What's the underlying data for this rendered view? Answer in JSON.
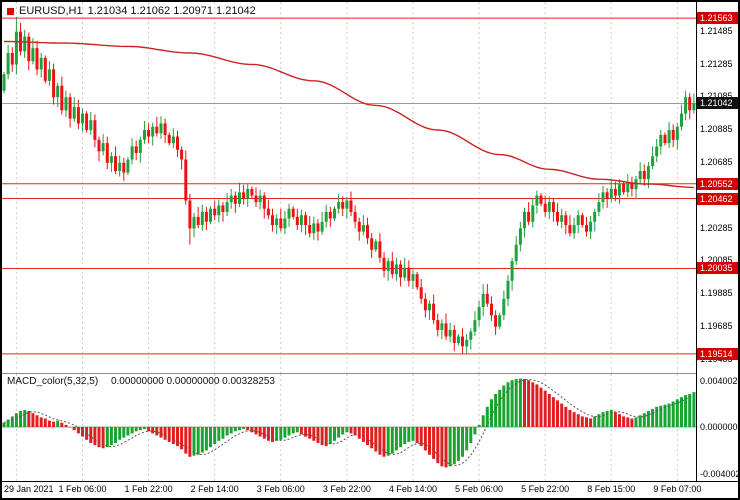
{
  "window": {
    "title_symbol": "EURUSD,H1",
    "title_ohlc": "1.21034 1.21062 1.20971 1.21042"
  },
  "colors": {
    "candle_up": "#1fa13d",
    "candle_down": "#ee1111",
    "ma_line": "#cc2222",
    "level_line": "#ee2222",
    "badge_bg": "#d40000",
    "current_badge_bg": "#111111",
    "bid_line": "#9a9a9a",
    "grid": "#cdcdcd",
    "macd_up": "#18a52f",
    "macd_down": "#e02020",
    "macd_signal": "#555555"
  },
  "chart_data": {
    "type": "candlestick",
    "symbol": "EURUSD",
    "timeframe": "H1",
    "price_range": {
      "min": 1.1944,
      "max": 1.216
    },
    "current_price": 1.21042,
    "current_label": "1.21042",
    "levels": [
      1.21563,
      1.20552,
      1.20462,
      1.20035,
      1.19514
    ],
    "level_labels": [
      "1.21563",
      "1.20552",
      "1.20462",
      "1.20035",
      "1.19514"
    ],
    "price_ticks": [
      {
        "label": "1.21485",
        "price": 1.21485
      },
      {
        "label": "1.21285",
        "price": 1.21285
      },
      {
        "label": "1.21085",
        "price": 1.21085
      },
      {
        "label": "1.20885",
        "price": 1.20885
      },
      {
        "label": "1.20685",
        "price": 1.20685
      },
      {
        "label": "1.20285",
        "price": 1.20285
      },
      {
        "label": "1.20085",
        "price": 1.20085
      },
      {
        "label": "1.19885",
        "price": 1.19885
      },
      {
        "label": "1.19685",
        "price": 1.19685
      },
      {
        "label": "1.19485",
        "price": 1.19485
      }
    ],
    "time_labels": [
      "29 Jan 2021",
      "1 Feb 06:00",
      "1 Feb 22:00",
      "2 Feb 14:00",
      "3 Feb 06:00",
      "3 Feb 22:00",
      "4 Feb 14:00",
      "5 Feb 06:00",
      "5 Feb 22:00",
      "8 Feb 15:00",
      "9 Feb 07:00"
    ],
    "time_label_indices": [
      3,
      19,
      35,
      51,
      67,
      83,
      99,
      115,
      131,
      147,
      163
    ],
    "first_open": 1.2112,
    "closes": [
      1.2122,
      1.2135,
      1.2128,
      1.2148,
      1.2136,
      1.2145,
      1.213,
      1.2138,
      1.2125,
      1.2132,
      1.2118,
      1.2125,
      1.2108,
      1.2115,
      1.21,
      1.2108,
      1.2095,
      1.2102,
      1.2092,
      1.2098,
      1.2088,
      1.2094,
      1.2082,
      1.2075,
      1.208,
      1.2068,
      1.2072,
      1.2063,
      1.2068,
      1.2062,
      1.207,
      1.2078,
      1.2074,
      1.2082,
      1.2088,
      1.2084,
      1.209,
      1.2086,
      1.2092,
      1.2085,
      1.208,
      1.2084,
      1.2076,
      1.207,
      1.2045,
      1.2028,
      1.2035,
      1.203,
      1.2038,
      1.2032,
      1.204,
      1.2036,
      1.2042,
      1.2038,
      1.2044,
      1.2048,
      1.2043,
      1.205,
      1.2046,
      1.2052,
      1.2048,
      1.2044,
      1.2048,
      1.204,
      1.2036,
      1.203,
      1.2034,
      1.2028,
      1.2034,
      1.204,
      1.2035,
      1.203,
      1.2036,
      1.203,
      1.2025,
      1.2031,
      1.2026,
      1.2032,
      1.2038,
      1.2034,
      1.204,
      1.2044,
      1.204,
      1.2045,
      1.2038,
      1.2032,
      1.2026,
      1.203,
      1.2022,
      1.2015,
      1.202,
      1.201,
      1.2002,
      1.2008,
      1.2,
      1.2006,
      1.1998,
      1.2004,
      1.1996,
      1.2,
      1.1992,
      1.1985,
      1.1978,
      1.1982,
      1.1972,
      1.1966,
      1.197,
      1.1962,
      1.1966,
      1.1958,
      1.1962,
      1.1956,
      1.196,
      1.1965,
      1.1972,
      1.198,
      1.1988,
      1.1982,
      1.1975,
      1.1968,
      1.1975,
      1.1985,
      1.1996,
      1.2008,
      1.2018,
      1.2028,
      1.2038,
      1.2032,
      1.2042,
      1.2048,
      1.2043,
      1.2038,
      1.2044,
      1.2038,
      1.2032,
      1.2036,
      1.203,
      1.2025,
      1.203,
      1.2036,
      1.203,
      1.2026,
      1.2032,
      1.2038,
      1.2044,
      1.205,
      1.2046,
      1.2052,
      1.2048,
      1.2055,
      1.205,
      1.2056,
      1.2052,
      1.2058,
      1.2063,
      1.2058,
      1.2066,
      1.2072,
      1.2078,
      1.2085,
      1.208,
      1.2088,
      1.2082,
      1.209,
      1.2098,
      1.2108,
      1.21,
      1.21042
    ],
    "wick_overrides": {
      "3": {
        "high": 1.2157
      },
      "45": {
        "low": 1.2018
      },
      "92": {
        "low": 1.1998
      },
      "111": {
        "low": 1.19515
      },
      "116": {
        "high": 1.1994
      },
      "165": {
        "high": 1.2112
      }
    },
    "ma_keypoints": [
      [
        0,
        1.2142
      ],
      [
        15,
        1.2141
      ],
      [
        30,
        1.2139
      ],
      [
        45,
        1.2135
      ],
      [
        60,
        1.2128
      ],
      [
        75,
        1.2118
      ],
      [
        90,
        1.2103
      ],
      [
        105,
        1.2088
      ],
      [
        120,
        1.2073
      ],
      [
        132,
        1.2064
      ],
      [
        144,
        1.2058
      ],
      [
        156,
        1.2055
      ],
      [
        167,
        1.2053
      ]
    ],
    "indicator": {
      "name": "MACD_color(5,32,5)",
      "values": "0.00000000 0.00000000 0.00328253",
      "scale_labels": [
        "0.0040020",
        "0.0000000",
        "-0.0040020"
      ],
      "range": 0.0047,
      "macd": [
        0.0004,
        0.0007,
        0.001,
        0.0013,
        0.0015,
        0.0016,
        0.0015,
        0.0013,
        0.0011,
        0.0009,
        0.0008,
        0.0006,
        0.0005,
        0.0006,
        0.0004,
        0.0002,
        0.0,
        -0.0003,
        -0.0006,
        -0.0009,
        -0.0012,
        -0.0015,
        -0.0017,
        -0.0019,
        -0.002,
        -0.0019,
        -0.0017,
        -0.0015,
        -0.0012,
        -0.001,
        -0.0008,
        -0.0006,
        -0.0004,
        -0.0003,
        -0.0002,
        -0.0004,
        -0.0006,
        -0.0008,
        -0.001,
        -0.0012,
        -0.0014,
        -0.0016,
        -0.0018,
        -0.0021,
        -0.0025,
        -0.0028,
        -0.0027,
        -0.0026,
        -0.0024,
        -0.0022,
        -0.0019,
        -0.0016,
        -0.0013,
        -0.0011,
        -0.0008,
        -0.0006,
        -0.0004,
        -0.0003,
        -0.0002,
        -0.0003,
        -0.0005,
        -0.0007,
        -0.0009,
        -0.0011,
        -0.0013,
        -0.0014,
        -0.0013,
        -0.0012,
        -0.001,
        -0.0008,
        -0.0006,
        -0.0005,
        -0.0007,
        -0.0009,
        -0.0011,
        -0.0013,
        -0.0015,
        -0.0017,
        -0.0018,
        -0.0016,
        -0.0013,
        -0.001,
        -0.0007,
        -0.0005,
        -0.0006,
        -0.0008,
        -0.0011,
        -0.0014,
        -0.0017,
        -0.002,
        -0.0023,
        -0.0026,
        -0.0028,
        -0.0027,
        -0.0025,
        -0.0022,
        -0.0019,
        -0.0016,
        -0.0014,
        -0.0013,
        -0.0015,
        -0.0018,
        -0.0022,
        -0.0026,
        -0.003,
        -0.0034,
        -0.0037,
        -0.0038,
        -0.0037,
        -0.0035,
        -0.0032,
        -0.0028,
        -0.0022,
        -0.0015,
        -0.0007,
        0.0002,
        0.0011,
        0.0019,
        0.0026,
        0.0031,
        0.0035,
        0.0039,
        0.0042,
        0.0044,
        0.0045,
        0.00455,
        0.0045,
        0.0044,
        0.0042,
        0.004,
        0.0037,
        0.0034,
        0.0031,
        0.0028,
        0.0025,
        0.0022,
        0.0019,
        0.0016,
        0.0014,
        0.0012,
        0.001,
        0.0009,
        0.0008,
        0.001,
        0.0012,
        0.0014,
        0.0015,
        0.0016,
        0.0014,
        0.0012,
        0.001,
        0.0009,
        0.0008,
        0.0009,
        0.0011,
        0.0013,
        0.0015,
        0.0017,
        0.0019,
        0.002,
        0.0021,
        0.0022,
        0.0024,
        0.0026,
        0.0028,
        0.003,
        0.0031,
        0.00328
      ]
    }
  }
}
